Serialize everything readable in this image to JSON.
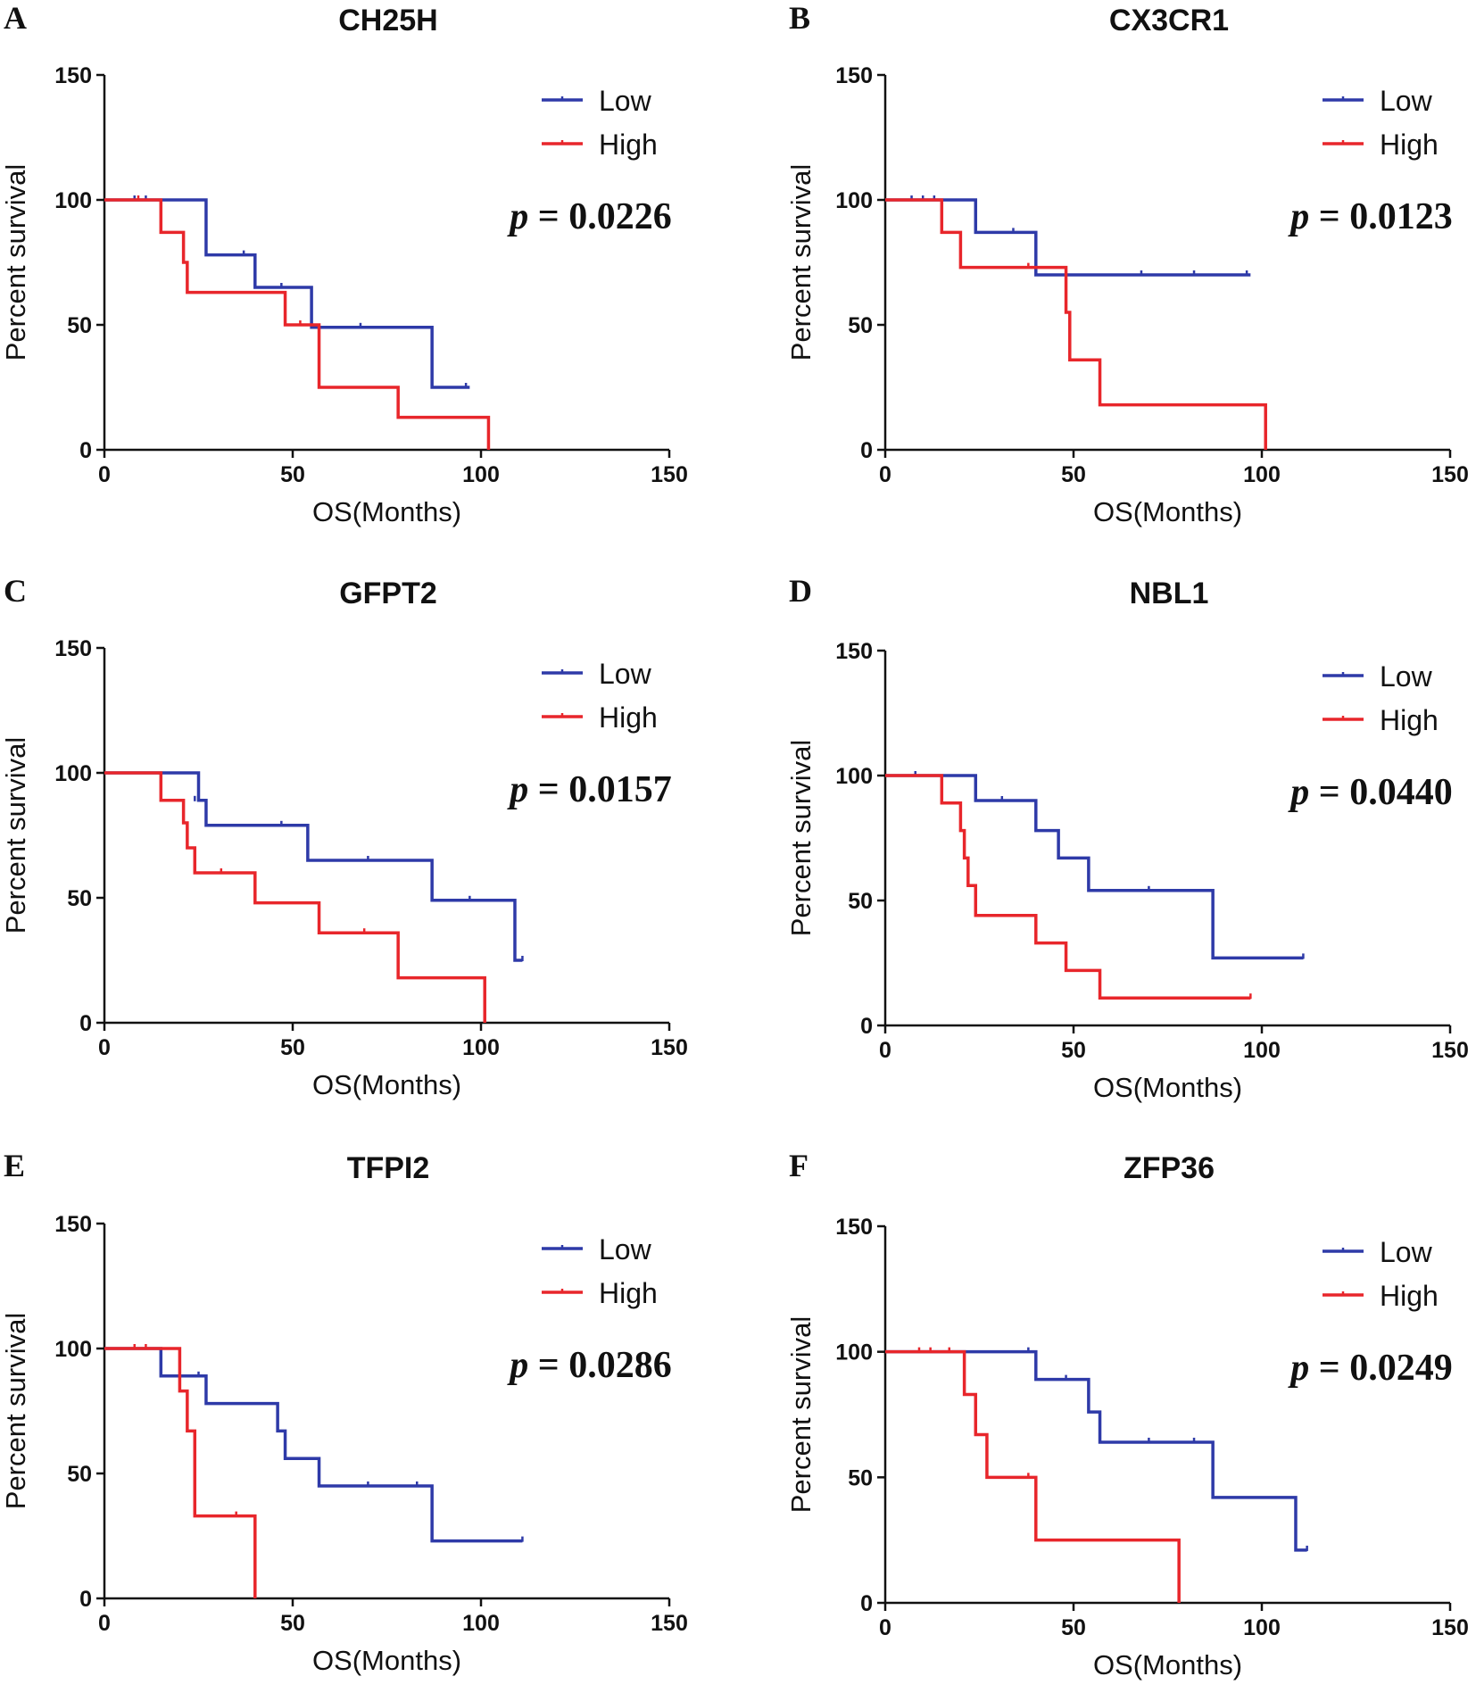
{
  "colors": {
    "low": "#2e3aa8",
    "high": "#e8262b",
    "axis": "#111111"
  },
  "chart_data": [
    {
      "panel": "A",
      "title": "CH25H",
      "type": "line",
      "xlabel": "OS(Months)",
      "ylabel": "Percent survival",
      "xlim": [
        0,
        150
      ],
      "ylim": [
        0,
        150
      ],
      "xticks": [
        "0",
        "50",
        "100",
        "150"
      ],
      "yticks": [
        "0",
        "50",
        "100",
        "150"
      ],
      "legend": [
        "Low",
        "High"
      ],
      "legend_position": "top-right",
      "p_label": "p",
      "p_value": "= 0.0226",
      "series": [
        {
          "name": "Low",
          "color": "#2e3aa8",
          "end_x": 97,
          "steps": [
            [
              0,
              100
            ],
            [
              27,
              78
            ],
            [
              40,
              65
            ],
            [
              55,
              49
            ],
            [
              87,
              25
            ]
          ],
          "censored": [
            [
              8,
              100
            ],
            [
              11,
              100
            ],
            [
              37,
              78
            ],
            [
              47,
              65
            ],
            [
              68,
              49
            ],
            [
              96,
              25
            ]
          ]
        },
        {
          "name": "High",
          "color": "#e8262b",
          "end_x": 102,
          "steps": [
            [
              0,
              100
            ],
            [
              15,
              87
            ],
            [
              21,
              75
            ],
            [
              22,
              63
            ],
            [
              48,
              50
            ],
            [
              57,
              25
            ],
            [
              78,
              13
            ],
            [
              102,
              0
            ]
          ],
          "censored": [
            [
              9,
              100
            ],
            [
              52,
              50
            ]
          ]
        }
      ]
    },
    {
      "panel": "B",
      "title": "CX3CR1",
      "type": "line",
      "xlabel": "OS(Months)",
      "ylabel": "Percent survival",
      "xlim": [
        0,
        150
      ],
      "ylim": [
        0,
        150
      ],
      "xticks": [
        "0",
        "50",
        "100",
        "150"
      ],
      "yticks": [
        "0",
        "50",
        "100",
        "150"
      ],
      "legend": [
        "Low",
        "High"
      ],
      "legend_position": "top-right",
      "p_label": "p",
      "p_value": "= 0.0123",
      "series": [
        {
          "name": "Low",
          "color": "#2e3aa8",
          "end_x": 97,
          "steps": [
            [
              0,
              100
            ],
            [
              24,
              87
            ],
            [
              40,
              70
            ]
          ],
          "censored": [
            [
              7,
              100
            ],
            [
              10,
              100
            ],
            [
              13,
              100
            ],
            [
              34,
              87
            ],
            [
              68,
              70
            ],
            [
              82,
              70
            ],
            [
              96,
              70
            ]
          ]
        },
        {
          "name": "High",
          "color": "#e8262b",
          "end_x": 101,
          "steps": [
            [
              0,
              100
            ],
            [
              15,
              87
            ],
            [
              20,
              73
            ],
            [
              48,
              55
            ],
            [
              49,
              36
            ],
            [
              57,
              18
            ],
            [
              101,
              0
            ]
          ],
          "censored": [
            [
              38,
              73
            ]
          ]
        }
      ]
    },
    {
      "panel": "C",
      "title": "GFPT2",
      "type": "line",
      "xlabel": "OS(Months)",
      "ylabel": "Percent survival",
      "xlim": [
        0,
        150
      ],
      "ylim": [
        0,
        150
      ],
      "xticks": [
        "0",
        "50",
        "100",
        "150"
      ],
      "yticks": [
        "0",
        "50",
        "100",
        "150"
      ],
      "legend": [
        "Low",
        "High"
      ],
      "legend_position": "top-right",
      "p_label": "p",
      "p_value": "= 0.0157",
      "series": [
        {
          "name": "Low",
          "color": "#2e3aa8",
          "end_x": 111,
          "steps": [
            [
              0,
              100
            ],
            [
              25,
              89
            ],
            [
              27,
              79
            ],
            [
              54,
              65
            ],
            [
              87,
              49
            ],
            [
              109,
              25
            ]
          ],
          "censored": [
            [
              24,
              89
            ],
            [
              47,
              79
            ],
            [
              70,
              65
            ],
            [
              97,
              49
            ],
            [
              111,
              25
            ]
          ]
        },
        {
          "name": "High",
          "color": "#e8262b",
          "end_x": 101,
          "steps": [
            [
              0,
              100
            ],
            [
              15,
              89
            ],
            [
              21,
              80
            ],
            [
              22,
              70
            ],
            [
              24,
              60
            ],
            [
              40,
              48
            ],
            [
              57,
              36
            ],
            [
              78,
              18
            ],
            [
              101,
              0
            ]
          ],
          "censored": [
            [
              31,
              60
            ],
            [
              69,
              36
            ]
          ]
        }
      ]
    },
    {
      "panel": "D",
      "title": "NBL1",
      "type": "line",
      "xlabel": "OS(Months)",
      "ylabel": "Percent survival",
      "xlim": [
        0,
        150
      ],
      "ylim": [
        0,
        150
      ],
      "xticks": [
        "0",
        "50",
        "100",
        "150"
      ],
      "yticks": [
        "0",
        "50",
        "100",
        "150"
      ],
      "legend": [
        "Low",
        "High"
      ],
      "legend_position": "top-right",
      "p_label": "p",
      "p_value": "= 0.0440",
      "series": [
        {
          "name": "Low",
          "color": "#2e3aa8",
          "end_x": 111,
          "steps": [
            [
              0,
              100
            ],
            [
              24,
              90
            ],
            [
              40,
              78
            ],
            [
              46,
              67
            ],
            [
              54,
              54
            ],
            [
              87,
              27
            ]
          ],
          "censored": [
            [
              8,
              100
            ],
            [
              31,
              90
            ],
            [
              70,
              54
            ],
            [
              111,
              27
            ]
          ]
        },
        {
          "name": "High",
          "color": "#e8262b",
          "end_x": 97,
          "steps": [
            [
              0,
              100
            ],
            [
              15,
              89
            ],
            [
              20,
              78
            ],
            [
              21,
              67
            ],
            [
              22,
              56
            ],
            [
              24,
              44
            ],
            [
              40,
              33
            ],
            [
              48,
              22
            ],
            [
              57,
              11
            ]
          ],
          "censored": [
            [
              97,
              11
            ]
          ]
        }
      ]
    },
    {
      "panel": "E",
      "title": "TFPI2",
      "type": "line",
      "xlabel": "OS(Months)",
      "ylabel": "Percent survival",
      "xlim": [
        0,
        150
      ],
      "ylim": [
        0,
        150
      ],
      "xticks": [
        "0",
        "50",
        "100",
        "150"
      ],
      "yticks": [
        "0",
        "50",
        "100",
        "150"
      ],
      "legend": [
        "Low",
        "High"
      ],
      "legend_position": "top-right",
      "p_label": "p",
      "p_value": "= 0.0286",
      "series": [
        {
          "name": "Low",
          "color": "#2e3aa8",
          "end_x": 111,
          "steps": [
            [
              0,
              100
            ],
            [
              15,
              89
            ],
            [
              27,
              78
            ],
            [
              46,
              67
            ],
            [
              48,
              56
            ],
            [
              57,
              45
            ],
            [
              87,
              23
            ]
          ],
          "censored": [
            [
              25,
              89
            ],
            [
              70,
              45
            ],
            [
              83,
              45
            ],
            [
              111,
              23
            ]
          ]
        },
        {
          "name": "High",
          "color": "#e8262b",
          "end_x": 40,
          "steps": [
            [
              0,
              100
            ],
            [
              20,
              83
            ],
            [
              22,
              67
            ],
            [
              24,
              33
            ],
            [
              40,
              0
            ]
          ],
          "censored": [
            [
              8,
              100
            ],
            [
              11,
              100
            ],
            [
              35,
              33
            ]
          ]
        }
      ]
    },
    {
      "panel": "F",
      "title": "ZFP36",
      "type": "line",
      "xlabel": "OS(Months)",
      "ylabel": "Percent survival",
      "xlim": [
        0,
        150
      ],
      "ylim": [
        0,
        150
      ],
      "xticks": [
        "0",
        "50",
        "100",
        "150"
      ],
      "yticks": [
        "0",
        "50",
        "100",
        "150"
      ],
      "legend": [
        "Low",
        "High"
      ],
      "legend_position": "top-right",
      "p_label": "p",
      "p_value": "= 0.0249",
      "series": [
        {
          "name": "Low",
          "color": "#2e3aa8",
          "end_x": 112,
          "steps": [
            [
              0,
              100
            ],
            [
              40,
              89
            ],
            [
              54,
              76
            ],
            [
              57,
              64
            ],
            [
              87,
              42
            ],
            [
              109,
              21
            ]
          ],
          "censored": [
            [
              38,
              100
            ],
            [
              48,
              89
            ],
            [
              70,
              64
            ],
            [
              82,
              64
            ],
            [
              112,
              21
            ]
          ]
        },
        {
          "name": "High",
          "color": "#e8262b",
          "end_x": 78,
          "steps": [
            [
              0,
              100
            ],
            [
              21,
              83
            ],
            [
              24,
              67
            ],
            [
              27,
              50
            ],
            [
              40,
              25
            ],
            [
              78,
              0
            ]
          ],
          "censored": [
            [
              9,
              100
            ],
            [
              12,
              100
            ],
            [
              17,
              100
            ],
            [
              38,
              50
            ]
          ]
        }
      ]
    }
  ]
}
